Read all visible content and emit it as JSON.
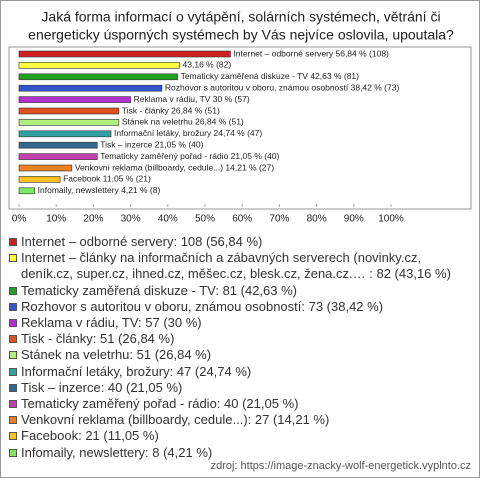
{
  "chart_data": {
    "type": "hbar",
    "title": [
      "Jaká forma informací o vytápění, solárních systémech, větrání či",
      "energeticky úsporných systémech by Vás nejvíce oslovila, upoutala?"
    ],
    "categories": [
      "Internet – odborné servery",
      "Internet – články na informačních a zábavných serverech",
      "Tematicky zaměřená diskuze - TV",
      "Rozhovor s autoritou v oboru, známou osobností",
      "Reklama v rádiu, TV",
      "Tisk - články",
      "Stánek na veletrhu",
      "Informační letáky, brožury",
      "Tisk – inzerce",
      "Tematicky zaměřený pořad - rádio",
      "Venkovní reklama",
      "Facebook",
      "Infomaily, newslettery"
    ],
    "values": [
      56.84,
      43.16,
      42.63,
      38.42,
      30,
      26.84,
      26.84,
      24.74,
      21.05,
      21.05,
      14.21,
      11.05,
      4.21
    ],
    "value_labels": [
      "Internet – odborné servery 56,84 % (108)",
      "43,16 % (82)",
      "Tematicky zaměřená diskuze - TV 42,63 % (81)",
      "Rozhovor s autoritou v oboru, známou osobností 38,42 % (73)",
      "Reklama v rádiu, TV 30 % (57)",
      "Tisk - články 26,84 % (51)",
      "Stánek na veletrhu 26,84 % (51)",
      "Informační letáky, brožury 24,74 % (47)",
      "Tisk – inzerce 21,05 % (40)",
      "Tematicky zaměřený pořad - rádio 21,05 % (40)",
      "Venkovní reklama (billboardy, cedule...) 14,21 % (27)",
      "Facebook 11,05 % (21)",
      "Infomaily, newslettery 4,21 % (8)"
    ],
    "legend_labels": [
      "Internet – odborné servery: 108 (56,84 %)",
      "Internet – články na informačních a zábavných serverech (novinky.cz, deník.cz, super.cz, ihned.cz, měšec.cz, blesk.cz, žena.cz.… : 82 (43,16 %)",
      "Tematicky zaměřená diskuze - TV: 81 (42,63 %)",
      "Rozhovor s autoritou v oboru, známou osobností: 73 (38,42 %)",
      "Reklama v rádiu, TV: 57 (30 %)",
      "Tisk - články: 51 (26,84 %)",
      "Stánek na veletrhu: 51 (26,84 %)",
      "Informační letáky, brožury: 47 (24,74 %)",
      "Tisk – inzerce: 40 (21,05 %)",
      "Tematicky zaměřený pořad - rádio: 40 (21,05 %)",
      "Venkovní reklama (billboardy, cedule...): 27 (14,21 %)",
      "Facebook: 21 (11,05 %)",
      "Infomaily, newslettery: 8 (4,21 %)"
    ],
    "colors": [
      "#cc2020",
      "#ffff40",
      "#22a022",
      "#3355cc",
      "#b030d0",
      "#e05020",
      "#b0f080",
      "#30a0a0",
      "#306890",
      "#c040b0",
      "#f08020",
      "#ffc020",
      "#80e860"
    ],
    "xlim": [
      0,
      100
    ],
    "xticks": [
      {
        "value": 0,
        "label": "0%"
      },
      {
        "value": 10,
        "label": "10%"
      },
      {
        "value": 20,
        "label": "20%"
      },
      {
        "value": 30,
        "label": "30%"
      },
      {
        "value": 40,
        "label": "40%"
      },
      {
        "value": 50,
        "label": "50%"
      },
      {
        "value": 60,
        "label": "60%"
      },
      {
        "value": 70,
        "label": "70%"
      },
      {
        "value": 80,
        "label": "80%"
      },
      {
        "value": 90,
        "label": "90%"
      },
      {
        "value": 100,
        "label": "100%"
      }
    ],
    "source": "zdroj: https://image-znacky-wolf-energetick.vyplnto.cz"
  }
}
